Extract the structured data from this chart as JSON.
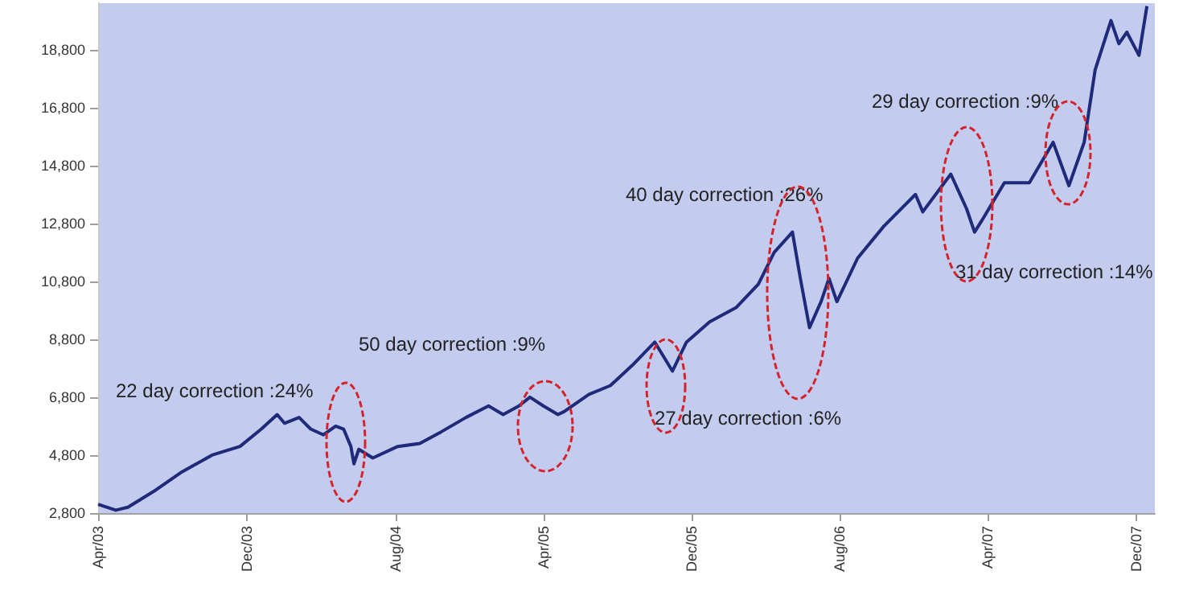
{
  "chart_data": {
    "type": "line",
    "x": [
      "2003-04-01",
      "2003-04-30",
      "2003-05-20",
      "2003-07-05",
      "2003-08-15",
      "2003-10-05",
      "2003-11-20",
      "2003-12-25",
      "2004-01-20",
      "2004-02-01",
      "2004-02-25",
      "2004-03-15",
      "2004-04-05",
      "2004-04-25",
      "2004-05-08",
      "2004-05-20",
      "2004-05-25",
      "2004-06-02",
      "2004-06-25",
      "2004-08-05",
      "2004-09-10",
      "2004-10-15",
      "2004-11-25",
      "2005-01-01",
      "2005-01-25",
      "2005-02-20",
      "2005-03-10",
      "2005-04-01",
      "2005-04-25",
      "2005-05-05",
      "2005-06-15",
      "2005-07-20",
      "2005-08-25",
      "2005-10-01",
      "2005-10-30",
      "2005-11-22",
      "2005-12-30",
      "2006-02-12",
      "2006-03-20",
      "2006-04-15",
      "2006-05-15",
      "2006-05-28",
      "2006-06-12",
      "2006-07-01",
      "2006-07-14",
      "2006-07-27",
      "2006-08-30",
      "2006-10-12",
      "2006-12-03",
      "2006-12-15",
      "2007-01-30",
      "2007-02-25",
      "2007-03-10",
      "2007-03-22",
      "2007-04-28",
      "2007-06-08",
      "2007-07-17",
      "2007-08-12",
      "2007-09-06",
      "2007-09-24",
      "2007-10-20",
      "2007-11-02",
      "2007-11-15",
      "2007-12-05",
      "2007-12-18"
    ],
    "series": [
      {
        "color": "#1f2a7a",
        "values": [
          3100,
          2900,
          3000,
          3600,
          4200,
          4800,
          5100,
          5700,
          6200,
          5900,
          6100,
          5700,
          5500,
          5800,
          5700,
          5100,
          4500,
          5000,
          4700,
          5100,
          5200,
          5600,
          6100,
          6500,
          6200,
          6500,
          6800,
          6500,
          6200,
          6300,
          6900,
          7200,
          7900,
          8700,
          7700,
          8700,
          9400,
          9900,
          10700,
          11800,
          12500,
          10900,
          9200,
          10100,
          10900,
          10100,
          11600,
          12700,
          13800,
          13200,
          14500,
          13300,
          12500,
          12900,
          14200,
          14200,
          15600,
          14100,
          15600,
          18100,
          19800,
          19000,
          19400,
          18600,
          20300
        ]
      }
    ],
    "xlim": [
      "2003-04-01",
      "2007-12-31"
    ],
    "xticks": [
      {
        "value": "2003-04-01",
        "label": "Apr/03"
      },
      {
        "value": "2003-12-01",
        "label": "Dec/03"
      },
      {
        "value": "2004-08-01",
        "label": "Aug/04"
      },
      {
        "value": "2005-04-01",
        "label": "Apr/05"
      },
      {
        "value": "2005-12-01",
        "label": "Dec/05"
      },
      {
        "value": "2006-08-01",
        "label": "Aug/06"
      },
      {
        "value": "2007-04-01",
        "label": "Apr/07"
      },
      {
        "value": "2007-12-01",
        "label": "Dec/07"
      }
    ],
    "ylim": [
      2800,
      20400
    ],
    "yticks": [
      {
        "value": 2800,
        "label": "2,800"
      },
      {
        "value": 4800,
        "label": "4,800"
      },
      {
        "value": 6800,
        "label": "6,800"
      },
      {
        "value": 8800,
        "label": "8,800"
      },
      {
        "value": 10800,
        "label": "10,800"
      },
      {
        "value": 12800,
        "label": "12,800"
      },
      {
        "value": 14800,
        "label": "14,800"
      },
      {
        "value": 16800,
        "label": "16,800"
      },
      {
        "value": 18800,
        "label": "18,800"
      }
    ],
    "annotations": [
      "22 day correction :24%",
      "50 day correction :9%",
      "27 day correction :6%",
      "40 day correction :26%",
      "31 day correction :14%",
      "29 day correction :9%"
    ],
    "grid": false,
    "marker": "none",
    "line_style": "solid"
  }
}
